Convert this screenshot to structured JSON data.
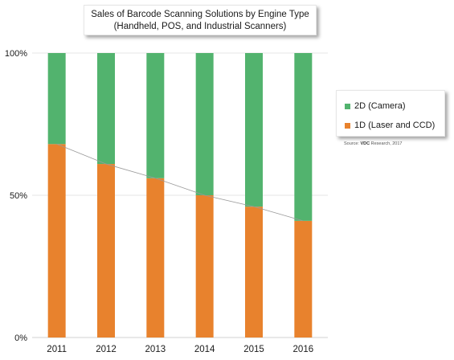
{
  "chart_data": {
    "type": "bar",
    "stacked": true,
    "normalized": true,
    "title_line1": "Sales of Barcode Scanning Solutions by Engine Type",
    "title_line2": "(Handheld, POS, and Industrial Scanners)",
    "categories": [
      "2011",
      "2012",
      "2013",
      "2014",
      "2015",
      "2016"
    ],
    "series": [
      {
        "name": "1D (Laser and CCD)",
        "color": "#e8822d",
        "values": [
          68,
          61,
          56,
          50,
          46,
          41
        ]
      },
      {
        "name": "2D (Camera)",
        "color": "#52b36e",
        "values": [
          32,
          39,
          44,
          50,
          54,
          59
        ]
      }
    ],
    "y_ticks": [
      "0%",
      "50%",
      "100%"
    ],
    "ylim": [
      0,
      100
    ],
    "grid": true,
    "trend_line": true,
    "legend_position": "right",
    "legend_items": [
      "2D (Camera)",
      "1D (Laser and CCD)"
    ],
    "source_prefix": "Source:",
    "source_brand": "VDC",
    "source_suffix": "Research, 2017"
  }
}
